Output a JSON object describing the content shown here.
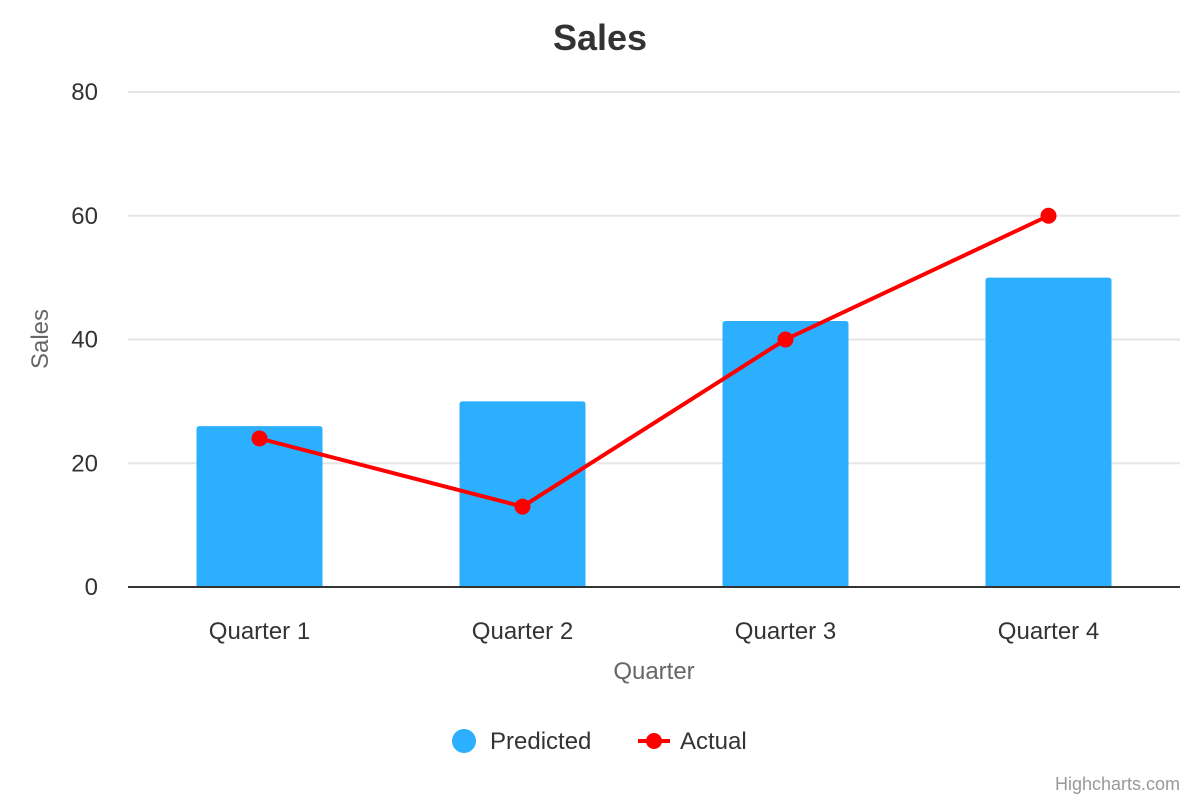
{
  "chart_data": {
    "type": "bar",
    "title": "Sales",
    "xlabel": "Quarter",
    "ylabel": "Sales",
    "categories": [
      "Quarter 1",
      "Quarter 2",
      "Quarter 3",
      "Quarter 4"
    ],
    "ylim": [
      0,
      80
    ],
    "yticks": [
      0,
      20,
      40,
      60,
      80
    ],
    "grid": true,
    "legend_position": "bottom-center",
    "series": [
      {
        "name": "Predicted",
        "type": "bar",
        "color": "#2caffe",
        "values": [
          26,
          30,
          43,
          50
        ]
      },
      {
        "name": "Actual",
        "type": "line",
        "color": "#ff0000",
        "values": [
          24,
          13,
          40,
          60
        ]
      }
    ]
  },
  "credits": "Highcharts.com"
}
